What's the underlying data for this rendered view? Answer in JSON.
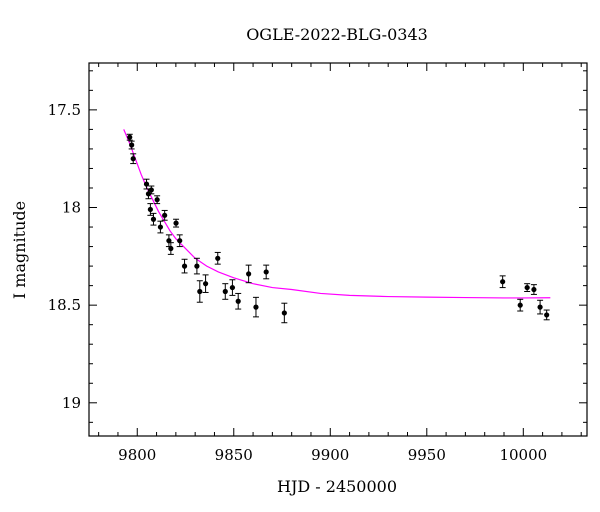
{
  "chart_data": {
    "type": "scatter",
    "title": "OGLE-2022-BLG-0343",
    "xlabel": "HJD - 2450000",
    "ylabel": "I magnitude",
    "xlim": [
      9775,
      10033
    ],
    "ylim": [
      19.17,
      17.26
    ],
    "y_inverted": true,
    "grid": false,
    "xticks": [
      {
        "value": 9800,
        "label": "9800"
      },
      {
        "value": 9850,
        "label": "9850"
      },
      {
        "value": 9900,
        "label": "9900"
      },
      {
        "value": 9950,
        "label": "9950"
      },
      {
        "value": 10000,
        "label": "10000"
      }
    ],
    "yticks": [
      {
        "value": 17.5,
        "label": "17.5"
      },
      {
        "value": 18,
        "label": "18"
      },
      {
        "value": 18.5,
        "label": "18.5"
      },
      {
        "value": 19,
        "label": "19"
      }
    ],
    "points": [
      {
        "x": 9796.1,
        "y": 17.64,
        "err": 0.015
      },
      {
        "x": 9797.1,
        "y": 17.68,
        "err": 0.02
      },
      {
        "x": 9797.9,
        "y": 17.75,
        "err": 0.025
      },
      {
        "x": 9804.8,
        "y": 17.88,
        "err": 0.025
      },
      {
        "x": 9805.8,
        "y": 17.93,
        "err": 0.025
      },
      {
        "x": 9806.8,
        "y": 18.01,
        "err": 0.03
      },
      {
        "x": 9807.3,
        "y": 17.91,
        "err": 0.02
      },
      {
        "x": 9808.4,
        "y": 18.06,
        "err": 0.03
      },
      {
        "x": 9810.3,
        "y": 17.96,
        "err": 0.02
      },
      {
        "x": 9812.0,
        "y": 18.1,
        "err": 0.03
      },
      {
        "x": 9814.2,
        "y": 18.04,
        "err": 0.025
      },
      {
        "x": 9816.4,
        "y": 18.17,
        "err": 0.03
      },
      {
        "x": 9817.4,
        "y": 18.21,
        "err": 0.03
      },
      {
        "x": 9820.1,
        "y": 18.08,
        "err": 0.02
      },
      {
        "x": 9822.0,
        "y": 18.17,
        "err": 0.03
      },
      {
        "x": 9824.5,
        "y": 18.3,
        "err": 0.035
      },
      {
        "x": 9830.9,
        "y": 18.3,
        "err": 0.04
      },
      {
        "x": 9832.4,
        "y": 18.43,
        "err": 0.055
      },
      {
        "x": 9835.4,
        "y": 18.39,
        "err": 0.045
      },
      {
        "x": 9841.7,
        "y": 18.26,
        "err": 0.03
      },
      {
        "x": 9845.6,
        "y": 18.43,
        "err": 0.04
      },
      {
        "x": 9849.3,
        "y": 18.41,
        "err": 0.04
      },
      {
        "x": 9852.3,
        "y": 18.48,
        "err": 0.04
      },
      {
        "x": 9857.7,
        "y": 18.34,
        "err": 0.045
      },
      {
        "x": 9861.5,
        "y": 18.51,
        "err": 0.05
      },
      {
        "x": 9866.8,
        "y": 18.33,
        "err": 0.035
      },
      {
        "x": 9876.2,
        "y": 18.54,
        "err": 0.05
      },
      {
        "x": 9989.3,
        "y": 18.38,
        "err": 0.03
      },
      {
        "x": 9998.4,
        "y": 18.5,
        "err": 0.03
      },
      {
        "x": 10002.0,
        "y": 18.41,
        "err": 0.02
      },
      {
        "x": 10005.5,
        "y": 18.42,
        "err": 0.025
      },
      {
        "x": 10008.7,
        "y": 18.51,
        "err": 0.035
      },
      {
        "x": 10012.1,
        "y": 18.55,
        "err": 0.025
      }
    ],
    "model_curve": {
      "color": "#ff00ff",
      "points": [
        [
          9793,
          17.6
        ],
        [
          9796,
          17.67
        ],
        [
          9799,
          17.75
        ],
        [
          9802,
          17.83
        ],
        [
          9805,
          17.9
        ],
        [
          9808,
          17.96
        ],
        [
          9811,
          18.02
        ],
        [
          9814,
          18.07
        ],
        [
          9817,
          18.12
        ],
        [
          9820,
          18.16
        ],
        [
          9824,
          18.2
        ],
        [
          9830,
          18.26
        ],
        [
          9836,
          18.3
        ],
        [
          9842,
          18.33
        ],
        [
          9850,
          18.36
        ],
        [
          9860,
          18.39
        ],
        [
          9870,
          18.41
        ],
        [
          9880,
          18.42
        ],
        [
          9895,
          18.44
        ],
        [
          9910,
          18.45
        ],
        [
          9930,
          18.456
        ],
        [
          9950,
          18.459
        ],
        [
          9970,
          18.461
        ],
        [
          9990,
          18.463
        ],
        [
          10000,
          18.463
        ],
        [
          10014,
          18.462
        ]
      ]
    },
    "marker_color": "#000000"
  }
}
